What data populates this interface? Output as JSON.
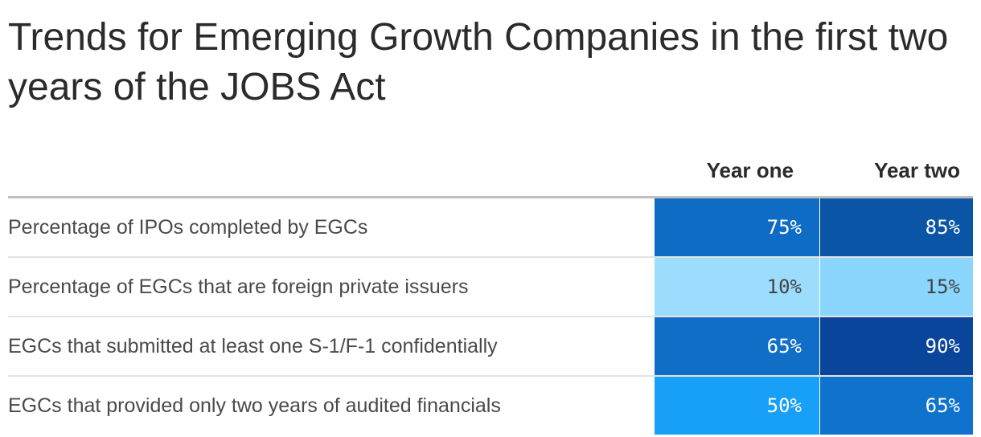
{
  "chart_data": {
    "type": "table",
    "title": "Trends for Emerging Growth Companies in the first two years of the JOBS Act",
    "columns": [
      "",
      "Year one",
      "Year two"
    ],
    "rows": [
      {
        "label": "Percentage of IPOs completed by EGCs",
        "values": [
          "75%",
          "85%"
        ],
        "numbers": [
          75,
          85
        ]
      },
      {
        "label": "Percentage of EGCs that are foreign private issuers",
        "values": [
          "10%",
          "15%"
        ],
        "numbers": [
          10,
          15
        ]
      },
      {
        "label": "EGCs that submitted at least one S-1/F-1 confidentially",
        "values": [
          "65%",
          "90%"
        ],
        "numbers": [
          65,
          90
        ]
      },
      {
        "label": "EGCs that provided only two years of audited financials",
        "values": [
          "50%",
          "65%"
        ],
        "numbers": [
          50,
          65
        ]
      }
    ],
    "cell_colors": [
      [
        "#0f6cc4",
        "#0a55a6"
      ],
      [
        "#9cdcfc",
        "#8ad6fc"
      ],
      [
        "#106ec7",
        "#09459a"
      ],
      [
        "#18a0f8",
        "#0f72cc"
      ]
    ],
    "cell_text_colors": [
      [
        "#ffffff",
        "#ffffff"
      ],
      [
        "#444444",
        "#444444"
      ],
      [
        "#ffffff",
        "#ffffff"
      ],
      [
        "#ffffff",
        "#ffffff"
      ]
    ]
  }
}
